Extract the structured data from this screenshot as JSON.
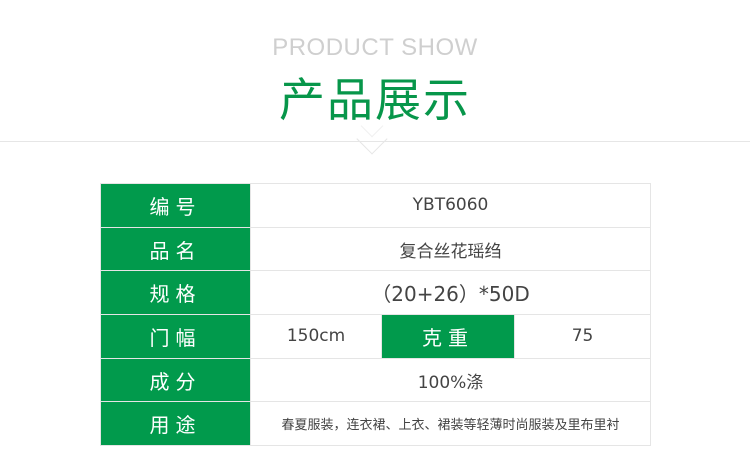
{
  "header": {
    "subtitle_en": "PRODUCT SHOW",
    "title_cn": "产品展示"
  },
  "colors": {
    "accent": "#019a4c",
    "subtitle": "#cfcfcf"
  },
  "table": {
    "rows": [
      {
        "label": "编号",
        "value": "YBT6060"
      },
      {
        "label": "品名",
        "value": "复合丝花瑶绉"
      },
      {
        "label": "规格",
        "value": "（20+26）*50D"
      },
      {
        "label": "门幅",
        "value": "150cm",
        "label2": "克重",
        "value2": "75"
      },
      {
        "label": "成分",
        "value": "100%涤"
      },
      {
        "label": "用途",
        "value": "春夏服装，连衣裙、上衣、裙装等轻薄时尚服装及里布里衬"
      }
    ]
  }
}
